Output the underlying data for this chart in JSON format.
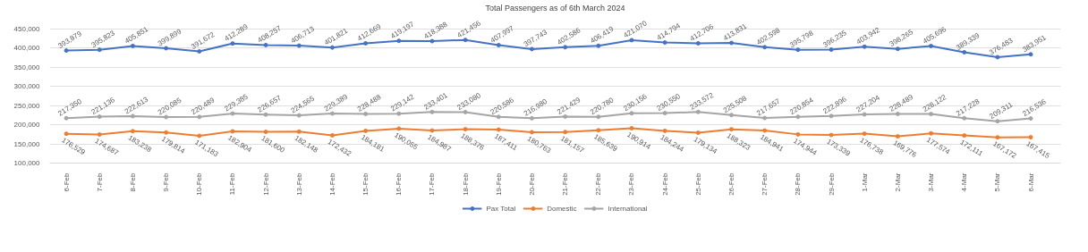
{
  "chart_data": {
    "type": "line",
    "title": "Total Passengers as of 6th March 2024",
    "categories": [
      "6-Feb",
      "7-Feb",
      "8-Feb",
      "9-Feb",
      "10-Feb",
      "11-Feb",
      "12-Feb",
      "13-Feb",
      "14-Feb",
      "15-Feb",
      "16-Feb",
      "17-Feb",
      "18-Feb",
      "19-Feb",
      "20-Feb",
      "21-Feb",
      "22-Feb",
      "23-Feb",
      "24-Feb",
      "25-Feb",
      "26-Feb",
      "27-Feb",
      "28-Feb",
      "29-Feb",
      "1-Mar",
      "2-Mar",
      "3-Mar",
      "4-Mar",
      "5-Mar",
      "6-Mar"
    ],
    "series": [
      {
        "name": "Pax Total",
        "color": "#4472c4",
        "values": [
          393879,
          395823,
          405851,
          399899,
          391672,
          412289,
          408257,
          406713,
          401821,
          412669,
          419197,
          418388,
          421456,
          407997,
          397743,
          402586,
          406419,
          421070,
          414794,
          412706,
          413831,
          402598,
          395798,
          396235,
          403942,
          398265,
          405696,
          389339,
          376483,
          383951
        ],
        "value_labels": [
          "393,879",
          "395,823",
          "405,851",
          "399,899",
          "391,672",
          "412,289",
          "408,257",
          "406,713",
          "401,821",
          "412,669",
          "419,197",
          "418,388",
          "421,456",
          "407,997",
          "397,743",
          "402,586",
          "406,419",
          "421,070",
          "414,794",
          "412,706",
          "413,831",
          "402,598",
          "395,798",
          "396,235",
          "403,942",
          "398,265",
          "405,696",
          "389,339",
          "376,483",
          "383,951"
        ]
      },
      {
        "name": "Domestic",
        "color": "#ed7d31",
        "values": [
          176529,
          174687,
          183238,
          179814,
          171183,
          182904,
          181600,
          182148,
          172432,
          184181,
          190055,
          184987,
          188376,
          187411,
          180763,
          181157,
          185639,
          190914,
          184244,
          179134,
          188323,
          184941,
          174944,
          173339,
          176738,
          169776,
          177574,
          172111,
          167172,
          167415
        ],
        "value_labels": [
          "176,529",
          "174,687",
          "183,238",
          "179,814",
          "171,183",
          "182,904",
          "181,600",
          "182,148",
          "172,432",
          "184,181",
          "190,055",
          "184,987",
          "188,376",
          "187,411",
          "180,763",
          "181,157",
          "185,639",
          "190,914",
          "184,244",
          "179,134",
          "188,323",
          "184,941",
          "174,944",
          "173,339",
          "176,738",
          "169,776",
          "177,574",
          "172,111",
          "167,172",
          "167,415"
        ]
      },
      {
        "name": "International",
        "color": "#a5a5a5",
        "values": [
          217350,
          221136,
          222613,
          220085,
          220489,
          229385,
          226657,
          224565,
          229389,
          228488,
          229142,
          233401,
          233080,
          220586,
          216980,
          221429,
          220780,
          230156,
          230550,
          233572,
          225508,
          217657,
          220854,
          222896,
          227204,
          228489,
          228122,
          217228,
          209311,
          216536
        ],
        "value_labels": [
          "217,350",
          "221,136",
          "222,613",
          "220,085",
          "220,489",
          "229,385",
          "226,657",
          "224,565",
          "229,389",
          "228,488",
          "229,142",
          "233,401",
          "233,080",
          "220,586",
          "216,980",
          "221,429",
          "220,780",
          "230,156",
          "230,550",
          "233,572",
          "225,508",
          "217,657",
          "220,854",
          "222,896",
          "227,204",
          "228,489",
          "228,122",
          "217,228",
          "209,311",
          "216,536"
        ]
      }
    ],
    "ylim": [
      100000,
      450000
    ],
    "yticks": [
      {
        "value": 100000,
        "label": "100,000"
      },
      {
        "value": 150000,
        "label": "150,000"
      },
      {
        "value": 200000,
        "label": "200,000"
      },
      {
        "value": 250000,
        "label": "250,000"
      },
      {
        "value": 300000,
        "label": "300,000"
      },
      {
        "value": 350000,
        "label": "350,000"
      },
      {
        "value": 400000,
        "label": "400,000"
      },
      {
        "value": 450000,
        "label": "450,000"
      }
    ],
    "grid": "y",
    "legend": "bottom",
    "marker": "circle",
    "line_style": "solid"
  }
}
